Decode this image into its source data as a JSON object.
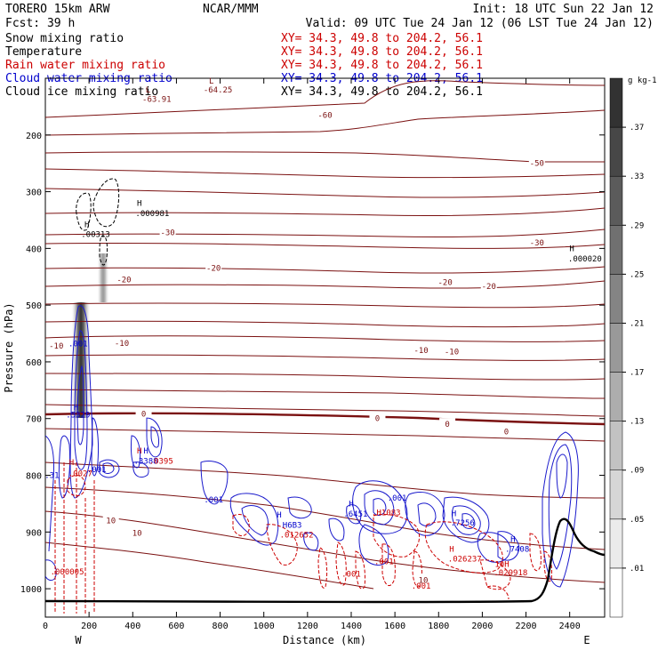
{
  "header": {
    "model": "TORERO  15km ARW",
    "org": "NCAR/MMM",
    "init": "Init: 18 UTC Sun 22 Jan 12",
    "fcst": "Fcst:   39 h",
    "valid": "Valid: 09 UTC Tue 24 Jan 12 (06 LST Tue 24 Jan 12)"
  },
  "legend": [
    {
      "label": "Snow mixing ratio",
      "xy": "XY=  34.3, 49.8 to 204.2, 56.1",
      "label_color": "#000000",
      "xy_color": "#cc0000"
    },
    {
      "label": "Temperature",
      "xy": "XY=  34.3, 49.8 to 204.2, 56.1",
      "label_color": "#000000",
      "xy_color": "#cc0000"
    },
    {
      "label": "Rain water mixing ratio",
      "xy": "XY=  34.3, 49.8 to 204.2, 56.1",
      "label_color": "#cc0000",
      "xy_color": "#cc0000"
    },
    {
      "label": "Cloud water mixing ratio",
      "xy": "XY=  34.3, 49.8 to 204.2, 56.1",
      "label_color": "#0000cc",
      "xy_color": "#0000cc"
    },
    {
      "label": "Cloud ice mixing ratio",
      "xy": "XY=  34.3, 49.8 to 204.2, 56.1",
      "label_color": "#000000",
      "xy_color": "#000000"
    }
  ],
  "colors": {
    "temperature": "#7a1010",
    "rain": "#cc0000",
    "cloud_water": "#0000cc",
    "ice": "#000000",
    "terrain": "#000000"
  },
  "chart_data": {
    "type": "contour",
    "xlabel": "Distance (km)",
    "ylabel": "Pressure (hPa)",
    "xlim": [
      0,
      2560
    ],
    "ylim": [
      1050,
      100
    ],
    "x_ticks": [
      0,
      200,
      400,
      600,
      800,
      1000,
      1200,
      1400,
      1600,
      1800,
      2000,
      2200,
      2400
    ],
    "y_ticks": [
      200,
      300,
      400,
      500,
      600,
      700,
      800,
      900,
      1000
    ],
    "end_labels": {
      "west": "W",
      "east": "E"
    },
    "colorbar": {
      "unit": "g kg-1",
      "levels": [
        0.01,
        0.05,
        0.09,
        0.13,
        0.17,
        0.21,
        0.25,
        0.29,
        0.33,
        0.37
      ],
      "tick_labels": [
        ".01",
        ".05",
        ".09",
        ".13",
        ".17",
        ".21",
        ".25",
        ".29",
        ".33",
        ".37"
      ]
    },
    "temperature_labels": [
      {
        "text": "-60",
        "x": 1280,
        "p": 165
      },
      {
        "text": "-50",
        "x": 2250,
        "p": 250
      },
      {
        "text": "-30",
        "x": 560,
        "p": 372
      },
      {
        "text": "-30",
        "x": 2250,
        "p": 390
      },
      {
        "text": "-20",
        "x": 770,
        "p": 435
      },
      {
        "text": "-20",
        "x": 360,
        "p": 455
      },
      {
        "text": "-20",
        "x": 1830,
        "p": 460
      },
      {
        "text": "-20",
        "x": 2030,
        "p": 467
      },
      {
        "text": "-10",
        "x": 50,
        "p": 572
      },
      {
        "text": "-10",
        "x": 350,
        "p": 567
      },
      {
        "text": "-10",
        "x": 1720,
        "p": 580
      },
      {
        "text": "-10",
        "x": 1860,
        "p": 582
      },
      {
        "text": "0",
        "x": 450,
        "p": 692
      },
      {
        "text": "0",
        "x": 1520,
        "p": 700
      },
      {
        "text": "0",
        "x": 1840,
        "p": 710
      },
      {
        "text": "0",
        "x": 2110,
        "p": 723
      },
      {
        "text": "10",
        "x": 300,
        "p": 880
      },
      {
        "text": "10",
        "x": 420,
        "p": 902
      },
      {
        "text": "10",
        "x": 1730,
        "p": 985
      }
    ],
    "extrema": [
      {
        "text": "L",
        "x": 470,
        "p": 120,
        "color": "#7a1010"
      },
      {
        "text": "-63.91",
        "x": 510,
        "p": 137,
        "color": "#7a1010"
      },
      {
        "text": "L",
        "x": 760,
        "p": 105,
        "color": "#7a1010"
      },
      {
        "text": "-64.25",
        "x": 790,
        "p": 120,
        "color": "#7a1010"
      },
      {
        "text": "H",
        "x": 430,
        "p": 320,
        "color": "#000000"
      },
      {
        "text": ".000981",
        "x": 490,
        "p": 338,
        "color": "#000000"
      },
      {
        "text": "H",
        "x": 190,
        "p": 358,
        "color": "#000000"
      },
      {
        "text": ".00313",
        "x": 230,
        "p": 375,
        "color": "#000000"
      },
      {
        "text": "H",
        "x": 2410,
        "p": 400,
        "color": "#000000"
      },
      {
        "text": ".000020",
        "x": 2470,
        "p": 418,
        "color": "#000000"
      },
      {
        "text": ".001",
        "x": 150,
        "p": 568,
        "color": "#0000cc"
      },
      {
        "text": "H",
        "x": 140,
        "p": 680,
        "color": "#0000cc"
      },
      {
        "text": ".5329",
        "x": 150,
        "p": 693,
        "color": "#0000cc"
      },
      {
        "text": "H",
        "x": 430,
        "p": 757,
        "color": "#cc0000"
      },
      {
        "text": "H",
        "x": 460,
        "p": 757,
        "color": "#0000cc"
      },
      {
        "text": ".3388",
        "x": 460,
        "p": 775,
        "color": "#0000cc"
      },
      {
        "text": ".0395",
        "x": 530,
        "p": 775,
        "color": "#cc0000"
      },
      {
        "text": "H",
        "x": 120,
        "p": 777,
        "color": "#cc0000"
      },
      {
        "text": ".0027",
        "x": 160,
        "p": 797,
        "color": "#cc0000"
      },
      {
        "text": ".001",
        "x": 235,
        "p": 790,
        "color": "#0000cc"
      },
      {
        "text": ".31",
        "x": 30,
        "p": 800,
        "color": "#0000cc"
      },
      {
        "text": ".001",
        "x": 770,
        "p": 843,
        "color": "#0000cc"
      },
      {
        "text": "H",
        "x": 1070,
        "p": 870,
        "color": "#0000cc"
      },
      {
        "text": "H6B3",
        "x": 1130,
        "p": 888,
        "color": "#0000cc"
      },
      {
        "text": ".012652",
        "x": 1150,
        "p": 905,
        "color": "#cc0000"
      },
      {
        "text": "H",
        "x": 1400,
        "p": 850,
        "color": "#0000cc"
      },
      {
        "text": ".6451",
        "x": 1420,
        "p": 868,
        "color": "#0000cc"
      },
      {
        "text": ".H1083",
        "x": 1560,
        "p": 866,
        "color": "#cc0000"
      },
      {
        "text": ".001",
        "x": 1610,
        "p": 840,
        "color": "#0000cc"
      },
      {
        "text": "H",
        "x": 1870,
        "p": 867,
        "color": "#0000cc"
      },
      {
        "text": ".7256",
        "x": 1910,
        "p": 884,
        "color": "#0000cc"
      },
      {
        "text": "H",
        "x": 2140,
        "p": 913,
        "color": "#0000cc"
      },
      {
        "text": ".7408",
        "x": 2160,
        "p": 930,
        "color": "#0000cc"
      },
      {
        "text": "H",
        "x": 1860,
        "p": 930,
        "color": "#cc0000"
      },
      {
        "text": ".026237",
        "x": 1920,
        "p": 947,
        "color": "#cc0000"
      },
      {
        "text": ".001",
        "x": 1550,
        "p": 952,
        "color": "#cc0000"
      },
      {
        "text": "10H",
        "x": 2090,
        "p": 957,
        "color": "#cc0000"
      },
      {
        "text": ".029918",
        "x": 2130,
        "p": 972,
        "color": "#cc0000"
      },
      {
        "text": ".001",
        "x": 1400,
        "p": 974,
        "color": "#cc0000"
      },
      {
        "text": ".000005",
        "x": 100,
        "p": 970,
        "color": "#cc0000"
      },
      {
        "text": ".001",
        "x": 1720,
        "p": 995,
        "color": "#cc0000"
      }
    ]
  }
}
